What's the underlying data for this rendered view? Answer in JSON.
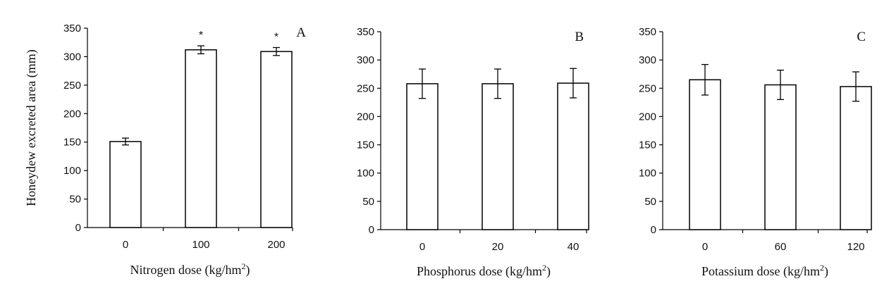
{
  "chart_data": [
    {
      "type": "bar",
      "panel_label": "A",
      "categories": [
        "0",
        "100",
        "200"
      ],
      "values": [
        151,
        312,
        309
      ],
      "errors": [
        6,
        7,
        7
      ],
      "annotations": [
        "",
        "*",
        "*"
      ],
      "ylabel": "Honeydew excreted area (mm)",
      "xlabel": "Nitrogen dose (kg/hm",
      "xlabel_sup": "2",
      "xlabel_suffix": ")",
      "yticks": [
        "0",
        "50",
        "100",
        "150",
        "200",
        "250",
        "300",
        "350"
      ],
      "ylim": [
        0,
        350
      ]
    },
    {
      "type": "bar",
      "panel_label": "B",
      "categories": [
        "0",
        "20",
        "40"
      ],
      "values": [
        258,
        258,
        259
      ],
      "errors": [
        26,
        26,
        26
      ],
      "annotations": [
        "",
        "",
        ""
      ],
      "ylabel": "",
      "xlabel": "Phosphorus dose (kg/hm",
      "xlabel_sup": "2",
      "xlabel_suffix": ")",
      "yticks": [
        "0",
        "50",
        "100",
        "150",
        "200",
        "250",
        "300",
        "350"
      ],
      "ylim": [
        0,
        350
      ]
    },
    {
      "type": "bar",
      "panel_label": "C",
      "categories": [
        "0",
        "60",
        "120"
      ],
      "values": [
        265,
        256,
        253
      ],
      "errors": [
        27,
        26,
        26
      ],
      "annotations": [
        "",
        "",
        ""
      ],
      "ylabel": "",
      "xlabel": "Potassium dose (kg/hm",
      "xlabel_sup": "2",
      "xlabel_suffix": ")",
      "yticks": [
        "0",
        "50",
        "100",
        "150",
        "200",
        "250",
        "300",
        "350"
      ],
      "ylim": [
        0,
        350
      ]
    }
  ]
}
